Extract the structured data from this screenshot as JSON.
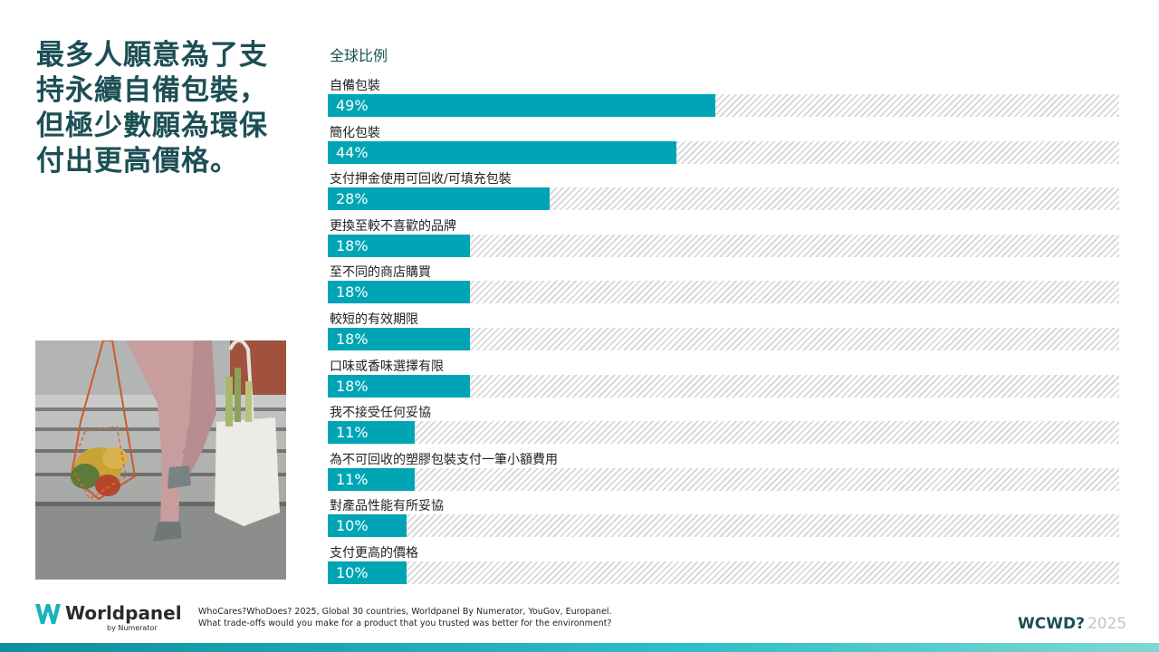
{
  "headline": "最多人願意為了支持永續自備包裝，但極少數願為環保付出更高價格。",
  "chart_data": {
    "type": "bar",
    "orientation": "horizontal",
    "subtitle": "全球比例",
    "value_unit": "%",
    "xlim": [
      0,
      100
    ],
    "categories": [
      "自備包裝",
      "簡化包裝",
      "支付押金使用可回收/可填充包裝",
      "更換至較不喜歡的品牌",
      "至不同的商店購買",
      "較短的有效期限",
      "口味或香味選擇有限",
      "我不接受任何妥協",
      "為不可回收的塑膠包裝支付一筆小額費用",
      "對產品性能有所妥協",
      "支付更高的價格"
    ],
    "values": [
      49,
      44,
      28,
      18,
      18,
      18,
      18,
      11,
      11,
      10,
      10
    ],
    "value_labels": [
      "49%",
      "44%",
      "28%",
      "18%",
      "18%",
      "18%",
      "18%",
      "11%",
      "11%",
      "10%",
      "10%"
    ],
    "bar_color": "#00a5b5",
    "background_pattern": "hatched"
  },
  "footer": {
    "logo_text": "Worldpanel",
    "logo_sub": "by Numerator",
    "source_line1": "WhoCares?WhoDoes? 2025, Global 30 countries, Worldpanel By Numerator, YouGov, Europanel.",
    "source_line2": "What trade-offs would you make for a product that you trusted was better for the environment?",
    "badge_text": "WCWD?",
    "badge_year": "2025"
  },
  "colors": {
    "accent": "#00a5b5",
    "headline": "#1c4f55"
  }
}
